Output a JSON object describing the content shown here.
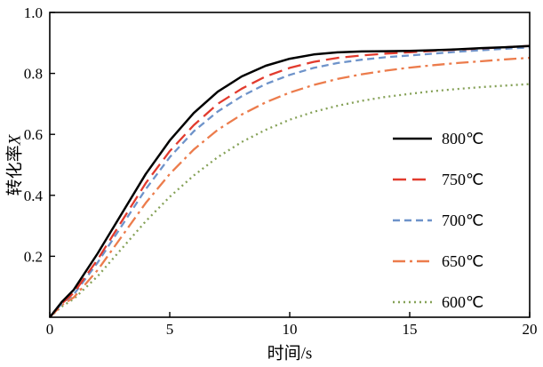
{
  "chart_data": {
    "type": "line",
    "title": "",
    "xlabel": "时间/s",
    "ylabel": "转化率X",
    "ylabel_parts": [
      "转化率",
      "X"
    ],
    "xlim": [
      0,
      20
    ],
    "ylim": [
      0,
      1.0
    ],
    "xticks": [
      0,
      5,
      10,
      15,
      20
    ],
    "yticks": [
      0.2,
      0.4,
      0.6,
      0.8,
      1.0
    ],
    "grid": false,
    "legend_position": "inside-right",
    "frame": true,
    "axis_color": "#000000",
    "x": [
      0,
      0.5,
      1,
      2,
      3,
      4,
      5,
      6,
      7,
      8,
      9,
      10,
      11,
      12,
      13,
      14,
      15,
      16,
      17,
      18,
      19,
      20
    ],
    "series": [
      {
        "name": "800℃",
        "color": "#000000",
        "dash": "solid",
        "values": [
          0,
          0.05,
          0.09,
          0.21,
          0.34,
          0.47,
          0.58,
          0.67,
          0.74,
          0.79,
          0.825,
          0.848,
          0.862,
          0.869,
          0.872,
          0.873,
          0.874,
          0.876,
          0.879,
          0.883,
          0.886,
          0.89
        ]
      },
      {
        "name": "750℃",
        "color": "#e23b2e",
        "dash": "long-dash",
        "values": [
          0,
          0.045,
          0.08,
          0.19,
          0.315,
          0.44,
          0.545,
          0.63,
          0.7,
          0.75,
          0.79,
          0.818,
          0.838,
          0.851,
          0.859,
          0.865,
          0.869,
          0.874,
          0.878,
          0.882,
          0.886,
          0.89
        ]
      },
      {
        "name": "700℃",
        "color": "#6e93ca",
        "dash": "dash",
        "values": [
          0,
          0.045,
          0.075,
          0.18,
          0.3,
          0.42,
          0.525,
          0.61,
          0.675,
          0.725,
          0.765,
          0.795,
          0.818,
          0.834,
          0.845,
          0.853,
          0.859,
          0.865,
          0.871,
          0.876,
          0.881,
          0.885
        ]
      },
      {
        "name": "650℃",
        "color": "#ec7c4c",
        "dash": "dash-dot",
        "values": [
          0,
          0.04,
          0.065,
          0.155,
          0.265,
          0.375,
          0.47,
          0.55,
          0.615,
          0.665,
          0.705,
          0.737,
          0.762,
          0.782,
          0.797,
          0.809,
          0.819,
          0.827,
          0.834,
          0.84,
          0.846,
          0.851
        ]
      },
      {
        "name": "600℃",
        "color": "#85a157",
        "dash": "dot",
        "values": [
          0,
          0.035,
          0.06,
          0.135,
          0.225,
          0.315,
          0.395,
          0.465,
          0.525,
          0.575,
          0.615,
          0.648,
          0.674,
          0.694,
          0.71,
          0.723,
          0.733,
          0.742,
          0.749,
          0.755,
          0.76,
          0.765
        ]
      }
    ]
  }
}
